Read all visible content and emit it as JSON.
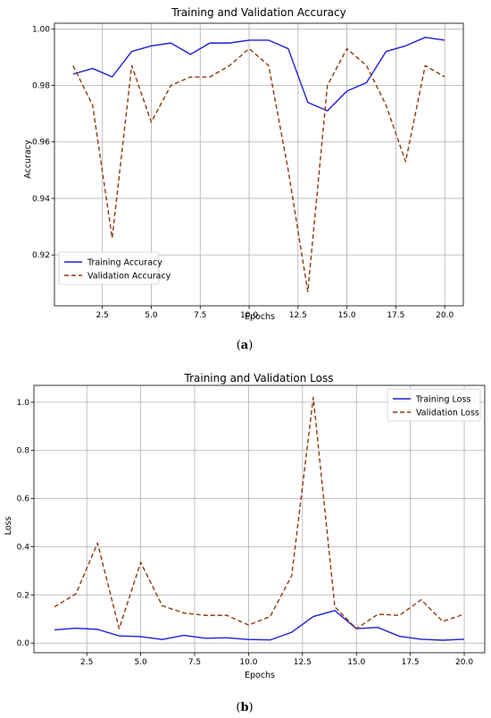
{
  "chart_data": [
    {
      "type": "line",
      "title": "Training and Validation Accuracy",
      "xlabel": "Epochs",
      "ylabel": "Accuracy",
      "xlim": [
        0.05,
        20.95
      ],
      "ylim": [
        0.902,
        1.002
      ],
      "xticks": [
        2.5,
        5.0,
        7.5,
        10.0,
        12.5,
        15.0,
        17.5,
        20.0
      ],
      "xtick_labels": [
        "2.5",
        "5.0",
        "7.5",
        "10.0",
        "12.5",
        "15.0",
        "17.5",
        "20.0"
      ],
      "yticks": [
        0.92,
        0.94,
        0.96,
        0.98,
        1.0
      ],
      "ytick_labels": [
        "0.92",
        "0.94",
        "0.96",
        "0.98",
        "1.00"
      ],
      "grid": true,
      "legend_position": "lower-left",
      "x": [
        1,
        2,
        3,
        4,
        5,
        6,
        7,
        8,
        9,
        10,
        11,
        12,
        13,
        14,
        15,
        16,
        17,
        18,
        19,
        20
      ],
      "series": [
        {
          "name": "Training Accuracy",
          "color": "#1f1fd6",
          "style": "solid",
          "values": [
            0.984,
            0.986,
            0.983,
            0.992,
            0.994,
            0.995,
            0.991,
            0.995,
            0.995,
            0.996,
            0.996,
            0.993,
            0.974,
            0.971,
            0.978,
            0.981,
            0.992,
            0.994,
            0.997,
            0.996
          ]
        },
        {
          "name": "Validation Accuracy",
          "color": "#8b3a0e",
          "style": "dashed",
          "values": [
            0.987,
            0.973,
            0.926,
            0.987,
            0.967,
            0.98,
            0.983,
            0.983,
            0.987,
            0.993,
            0.987,
            0.95,
            0.907,
            0.98,
            0.993,
            0.987,
            0.973,
            0.953,
            0.987,
            0.983
          ]
        }
      ]
    },
    {
      "type": "line",
      "title": "Training and Validation Loss",
      "xlabel": "Epochs",
      "ylabel": "Loss",
      "xlim": [
        0.05,
        20.95
      ],
      "ylim": [
        -0.04,
        1.07
      ],
      "xticks": [
        2.5,
        5.0,
        7.5,
        10.0,
        12.5,
        15.0,
        17.5,
        20.0
      ],
      "xtick_labels": [
        "2.5",
        "5.0",
        "7.5",
        "10.0",
        "12.5",
        "15.0",
        "17.5",
        "20.0"
      ],
      "yticks": [
        0.0,
        0.2,
        0.4,
        0.6,
        0.8,
        1.0
      ],
      "ytick_labels": [
        "0.0",
        "0.2",
        "0.4",
        "0.6",
        "0.8",
        "1.0"
      ],
      "grid": true,
      "legend_position": "top-right",
      "x": [
        1,
        2,
        3,
        4,
        5,
        6,
        7,
        8,
        9,
        10,
        11,
        12,
        13,
        14,
        15,
        16,
        17,
        18,
        19,
        20
      ],
      "series": [
        {
          "name": "Training Loss",
          "color": "#1f1fd6",
          "style": "solid",
          "values": [
            0.055,
            0.062,
            0.057,
            0.03,
            0.027,
            0.015,
            0.032,
            0.02,
            0.022,
            0.015,
            0.013,
            0.045,
            0.11,
            0.135,
            0.06,
            0.065,
            0.028,
            0.016,
            0.012,
            0.016
          ]
        },
        {
          "name": "Validation Loss",
          "color": "#8b3a0e",
          "style": "dashed",
          "values": [
            0.15,
            0.205,
            0.415,
            0.06,
            0.335,
            0.155,
            0.125,
            0.115,
            0.115,
            0.075,
            0.11,
            0.28,
            1.02,
            0.15,
            0.06,
            0.12,
            0.115,
            0.18,
            0.09,
            0.12
          ]
        }
      ]
    }
  ],
  "captions": [
    "(a)",
    "(b)"
  ]
}
